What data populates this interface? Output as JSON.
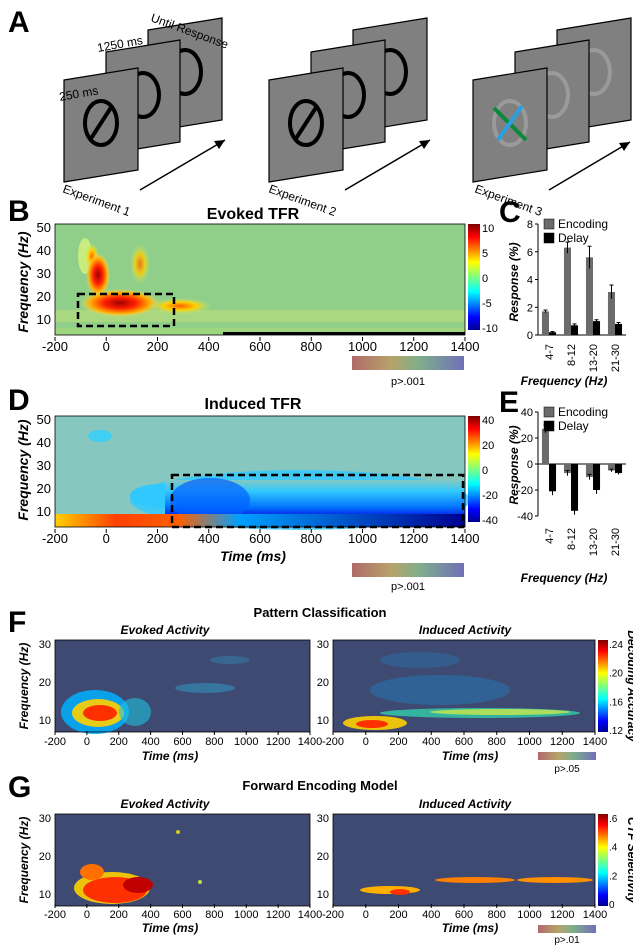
{
  "panels": {
    "A": {
      "letter": "A",
      "exp1": {
        "label": "Experiment 1",
        "d250": "250 ms",
        "d1250": "1250 ms",
        "until": "Until Response"
      },
      "exp2": {
        "label": "Experiment 2"
      },
      "exp3": {
        "label": "Experiment 3"
      }
    },
    "B": {
      "letter": "B",
      "title": "Evoked TFR",
      "ylabel": "Frequency (Hz)",
      "pnote": "p>.001"
    },
    "C": {
      "letter": "C",
      "ylabel": "Response (%)",
      "xlabel": "Frequency (Hz)"
    },
    "D": {
      "letter": "D",
      "title": "Induced TFR",
      "ylabel": "Frequency (Hz)",
      "xlabel": "Time (ms)",
      "pnote": "p>.001"
    },
    "E": {
      "letter": "E",
      "ylabel": "Response (%)",
      "xlabel": "Frequency (Hz)"
    },
    "F": {
      "letter": "F",
      "title": "Pattern Classification",
      "left_sub": "Evoked Activity",
      "right_sub": "Induced Activity",
      "ylabel": "Frequency (Hz)",
      "xlabel": "Time (ms)",
      "cbar_label": "Decoding Accuracy",
      "pnote": "p>.05"
    },
    "G": {
      "letter": "G",
      "title": "Forward Encoding Model",
      "left_sub": "Evoked Activity",
      "right_sub": "Induced Activity",
      "ylabel": "Frequency (Hz)",
      "xlabel": "Time (ms)",
      "cbar_label": "CTF Selectivity",
      "pnote": "p>.01"
    }
  },
  "ticks": {
    "tfr_x": [
      "-200",
      "0",
      "200",
      "400",
      "600",
      "800",
      "1000",
      "1200",
      "1400"
    ],
    "tfr_y": [
      "50",
      "40",
      "30",
      "20",
      "10"
    ],
    "cbar_B": [
      "10",
      "5",
      "0",
      "-5",
      "-10"
    ],
    "cbar_D": [
      "40",
      "20",
      "0",
      "-20",
      "-40"
    ],
    "cbar_F": [
      ".24",
      ".20",
      ".16",
      ".12"
    ],
    "cbar_G": [
      ".6",
      ".4",
      ".2",
      "0"
    ],
    "small_x": [
      "-200",
      "0",
      "200",
      "400",
      "600",
      "800",
      "1000",
      "1200",
      "1400"
    ],
    "small_y": [
      "30",
      "20",
      "10"
    ]
  },
  "chart_data": [
    {
      "type": "bar",
      "panel": "C",
      "categories": [
        "4-7",
        "8-12",
        "13-20",
        "21-30"
      ],
      "series": [
        {
          "name": "Encoding",
          "color": "#6b6b6b",
          "values": [
            1.7,
            6.3,
            5.6,
            3.1
          ],
          "err": [
            0.1,
            0.4,
            0.8,
            0.5
          ]
        },
        {
          "name": "Delay",
          "color": "#000000",
          "values": [
            0.2,
            0.7,
            1.0,
            0.8
          ],
          "err": [
            0.05,
            0.1,
            0.1,
            0.1
          ]
        }
      ],
      "ylim": [
        0,
        8
      ],
      "yticks": [
        "8",
        "6",
        "4",
        "2",
        "0"
      ],
      "legend": "top"
    },
    {
      "type": "bar",
      "panel": "E",
      "categories": [
        "4-7",
        "8-12",
        "13-20",
        "21-30"
      ],
      "series": [
        {
          "name": "Encoding",
          "color": "#6b6b6b",
          "values": [
            27,
            -7,
            -10,
            -5
          ],
          "err": [
            3,
            2,
            2,
            1
          ]
        },
        {
          "name": "Delay",
          "color": "#000000",
          "values": [
            -21,
            -36,
            -20,
            -7
          ],
          "err": [
            3,
            3,
            3,
            1
          ]
        }
      ],
      "ylim": [
        -40,
        40
      ],
      "yticks": [
        "40",
        "20",
        "0",
        "-20",
        "-40"
      ],
      "legend": "top"
    }
  ],
  "colors": {
    "jet_low": "#0000ff",
    "jet_high": "#cc0000",
    "map_bg": "#3f4a72",
    "tfr_bg_B": "#8fcf8a",
    "tfr_bg_D": "#86c8c0"
  }
}
